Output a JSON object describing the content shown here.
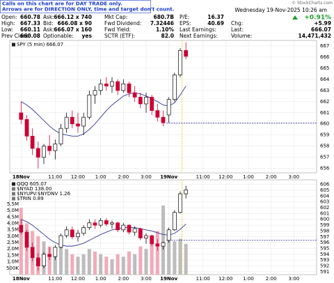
{
  "notice": [
    "Calls on this chart are for DAY TRADE only.",
    "Arrows are for DIRECTION ONLY, time and target don't count."
  ],
  "copyright": "© StockCharts.com",
  "date": "Wednesday 19-Nov-2025 10:26 am",
  "pct_change": "+0.91%",
  "quote": {
    "rows": [
      [
        [
          "Open:",
          "660.78"
        ],
        [
          "Ask:",
          "666.12 x 740"
        ],
        [
          "Mkt Cap:",
          "680.7B"
        ],
        [
          "P/E:",
          "16.37"
        ]
      ],
      [
        [
          "High:",
          "667.33"
        ],
        [
          "Bid:",
          "666.08 x 90"
        ],
        [
          "Fwd Dividend:",
          "7.32446"
        ],
        [
          "EPS:",
          "40.69"
        ],
        [
          "Chg:",
          "+5.99"
        ]
      ],
      [
        [
          "Low:",
          "660.11"
        ],
        [
          "Ask:",
          "666.07 x 160"
        ],
        [
          "Fwd Yield:",
          "1.10%"
        ],
        [
          "Last Earnings:"
        ],
        [
          "Last:",
          "666.07"
        ]
      ],
      [
        [
          "Prev Close:",
          "660.08"
        ],
        [
          "Optionable:",
          "yes"
        ],
        [
          "SCTR (ETF):",
          "82.0"
        ],
        [
          "Next Earnings:"
        ],
        [
          "Volume:",
          "14,471,432"
        ]
      ]
    ]
  },
  "chart_data": [
    {
      "type": "candlestick",
      "legend": [
        "SPY (5 min) 666.07"
      ],
      "colors": {
        "up": "#000000",
        "down": "#cc0033",
        "ma": "#333399",
        "reference": "#1a1aa6",
        "marker": "#e6c200",
        "grid": "#e4e4e4"
      },
      "open": [
        661.0,
        660.4,
        658.9,
        657.8,
        657.0,
        658.0,
        657.6,
        658.2,
        659.6,
        660.6,
        660.0,
        659.8,
        660.6,
        662.6,
        663.0,
        663.6,
        663.4,
        663.8,
        663.0,
        663.6,
        662.8,
        662.4,
        661.8,
        662.4,
        661.2,
        660.6,
        660.8,
        662.2,
        664.4,
        666.6
      ],
      "high": [
        662.0,
        660.8,
        659.6,
        658.4,
        658.2,
        659.0,
        658.6,
        660.0,
        661.0,
        661.2,
        661.0,
        661.0,
        663.0,
        663.4,
        664.0,
        664.2,
        664.2,
        664.0,
        664.0,
        663.8,
        663.4,
        662.8,
        662.8,
        662.6,
        661.8,
        661.2,
        662.4,
        664.6,
        666.8,
        667.33
      ],
      "low": [
        660.0,
        658.5,
        657.2,
        656.0,
        656.4,
        657.2,
        656.8,
        658.0,
        659.2,
        659.6,
        659.2,
        659.0,
        660.4,
        661.8,
        662.6,
        663.0,
        662.8,
        662.6,
        662.8,
        662.4,
        662.0,
        661.4,
        661.0,
        660.8,
        660.2,
        659.8,
        660.1,
        662.0,
        664.2,
        665.8
      ],
      "close": [
        660.4,
        658.9,
        657.8,
        657.0,
        658.0,
        657.6,
        658.2,
        659.6,
        660.6,
        660.0,
        659.8,
        660.6,
        662.6,
        663.0,
        663.6,
        663.4,
        663.8,
        663.0,
        663.6,
        662.8,
        662.4,
        661.8,
        662.4,
        661.2,
        660.6,
        660.1,
        662.2,
        664.4,
        666.6,
        666.07
      ],
      "ma": [
        662.0,
        661.7,
        661.3,
        660.8,
        660.3,
        659.8,
        659.4,
        659.1,
        659.0,
        658.9,
        658.9,
        659.1,
        659.5,
        660.0,
        660.6,
        661.2,
        661.7,
        662.1,
        662.5,
        662.7,
        662.8,
        662.7,
        662.5,
        662.3,
        662.0,
        661.7,
        661.6,
        661.9,
        662.6,
        663.4
      ],
      "ylim": [
        655.6,
        667.5
      ],
      "yticks": [
        656,
        657,
        658,
        659,
        660,
        661,
        662,
        663,
        664,
        665,
        666,
        667
      ],
      "xlim": [
        -2,
        52
      ],
      "xticks": [
        {
          "value": 0,
          "label": "18Nov"
        },
        {
          "value": 6,
          "label": "11:00"
        },
        {
          "value": 10,
          "label": "12:00"
        },
        {
          "value": 14,
          "label": "1:00"
        },
        {
          "value": 18,
          "label": "2:00"
        },
        {
          "value": 22,
          "label": "3:00"
        },
        {
          "value": 26,
          "label": "19Nov"
        },
        {
          "value": 32,
          "label": "11:00"
        },
        {
          "value": 36,
          "label": "12:00"
        },
        {
          "value": 40,
          "label": "1:00"
        },
        {
          "value": 44,
          "label": "2:00"
        },
        {
          "value": 48,
          "label": "3:00"
        }
      ],
      "reference_line": 660.08,
      "marker_x": 28.3,
      "grid": true
    },
    {
      "type": "candlestick",
      "legend": [
        "QQQ 605.07",
        "$NYAD 138.00",
        "$NYUPV:$NYDNV 1.26",
        "$TRIN 0.89"
      ],
      "colors": {
        "up": "#000000",
        "down": "#cc0033",
        "ma": "#333399",
        "reference": "#1a1aa6",
        "marker": "#e6c200",
        "grid": "#e4e4e4",
        "volume_up": "#bdbdbd",
        "volume_down": "#f2aab8"
      },
      "open": [
        599.0,
        597.8,
        595.2,
        593.4,
        592.0,
        594.0,
        593.6,
        595.2,
        597.2,
        598.2,
        597.0,
        597.6,
        598.6,
        599.4,
        599.0,
        599.8,
        599.2,
        599.4,
        598.2,
        599.0,
        597.8,
        598.4,
        596.8,
        597.2,
        595.8,
        595.4,
        596.4,
        598.2,
        601.2,
        604.4
      ],
      "high": [
        600.0,
        598.2,
        596.0,
        594.2,
        594.4,
        595.2,
        595.6,
        597.6,
        598.8,
        598.8,
        598.2,
        599.0,
        600.0,
        600.0,
        600.2,
        600.2,
        599.8,
        599.6,
        599.4,
        599.2,
        598.8,
        598.6,
        597.6,
        597.4,
        596.6,
        596.2,
        598.6,
        601.6,
        604.8,
        605.8
      ],
      "low": [
        597.4,
        594.6,
        592.8,
        591.2,
        591.6,
        593.0,
        593.0,
        595.0,
        596.8,
        596.6,
        596.2,
        597.2,
        598.2,
        598.4,
        598.6,
        598.8,
        598.4,
        597.8,
        597.8,
        597.4,
        597.2,
        596.4,
        595.8,
        595.4,
        594.6,
        594.8,
        596.0,
        598.0,
        601.0,
        603.6
      ],
      "close": [
        597.8,
        595.2,
        593.4,
        592.0,
        594.0,
        593.6,
        595.2,
        597.2,
        598.2,
        597.0,
        597.6,
        598.6,
        599.4,
        599.0,
        599.8,
        599.2,
        599.4,
        598.2,
        599.0,
        597.8,
        598.4,
        596.8,
        597.2,
        595.8,
        595.4,
        596.0,
        598.2,
        601.2,
        604.4,
        605.07
      ],
      "ma": [
        600.0,
        599.6,
        599.0,
        598.2,
        597.4,
        596.6,
        596.0,
        595.6,
        595.4,
        595.4,
        595.6,
        595.9,
        596.4,
        596.9,
        597.4,
        597.8,
        598.2,
        598.4,
        598.6,
        598.6,
        598.6,
        598.4,
        598.2,
        598.0,
        597.7,
        597.4,
        597.3,
        597.6,
        598.3,
        599.2
      ],
      "volume": [
        5200000,
        4000000,
        3400000,
        3000000,
        2600000,
        2200000,
        1800000,
        2400000,
        2000000,
        1600000,
        1400000,
        1600000,
        2000000,
        1800000,
        1600000,
        1400000,
        1200000,
        1600000,
        1400000,
        1800000,
        1600000,
        2200000,
        2000000,
        2600000,
        3400000,
        5400000,
        3000000,
        2600000,
        2800000,
        2400000
      ],
      "ylim": [
        590.5,
        606.8
      ],
      "yticks": [
        591,
        592,
        593,
        594,
        595,
        596,
        597,
        598,
        599,
        600,
        601,
        602,
        603,
        604,
        605,
        606
      ],
      "vol_ylim": [
        0,
        7400000
      ],
      "vol_ticks": [
        {
          "value": 500000,
          "label": "500K"
        },
        {
          "value": 1000000,
          "label": "1.0M"
        },
        {
          "value": 1500000,
          "label": "1.5M"
        },
        {
          "value": 2000000,
          "label": "2.0M"
        },
        {
          "value": 2500000,
          "label": "2.5M"
        },
        {
          "value": 3000000,
          "label": "3.0M"
        },
        {
          "value": 3500000,
          "label": "3.5M"
        },
        {
          "value": 4000000,
          "label": "4.0M"
        },
        {
          "value": 4500000,
          "label": "4.5M"
        },
        {
          "value": 5000000,
          "label": "5.0M"
        },
        {
          "value": 5500000,
          "label": "5.5M"
        }
      ],
      "xlim": [
        -2,
        52
      ],
      "xticks": [
        {
          "value": 0,
          "label": "18Nov"
        },
        {
          "value": 6,
          "label": "11:00"
        },
        {
          "value": 10,
          "label": "12:00"
        },
        {
          "value": 14,
          "label": "1:00"
        },
        {
          "value": 18,
          "label": "2:00"
        },
        {
          "value": 22,
          "label": "3:00"
        },
        {
          "value": 26,
          "label": "19Nov"
        },
        {
          "value": 32,
          "label": "11:00"
        },
        {
          "value": 36,
          "label": "12:00"
        },
        {
          "value": 40,
          "label": "1:00"
        },
        {
          "value": 44,
          "label": "2:00"
        },
        {
          "value": 48,
          "label": "3:00"
        }
      ],
      "reference_line": 596.4,
      "marker_x": 28.3,
      "grid": true
    }
  ]
}
